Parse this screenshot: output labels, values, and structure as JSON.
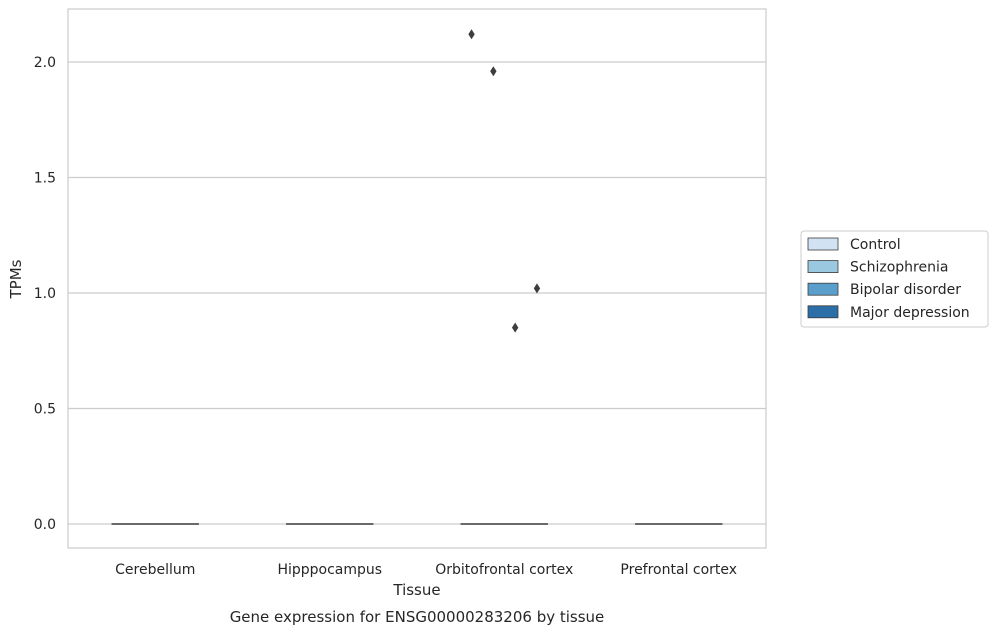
{
  "chart_data": {
    "type": "box",
    "title": "",
    "caption": "Gene expression for ENSG00000283206 by tissue",
    "xlabel": "Tissue",
    "ylabel": "TPMs",
    "ylim": [
      -0.1,
      2.23
    ],
    "yticks": [
      0.0,
      0.5,
      1.0,
      1.5,
      2.0
    ],
    "ytick_labels": [
      "0.0",
      "0.5",
      "1.0",
      "1.5",
      "2.0"
    ],
    "categories": [
      "Cerebellum",
      "Hipppocampus",
      "Orbitofrontal cortex",
      "Prefrontal cortex"
    ],
    "grid": "horizontal",
    "legend_position": "right",
    "series": [
      {
        "name": "Control",
        "color": "#d1e2f2",
        "boxes": [
          {
            "category": "Cerebellum",
            "median": 0.0,
            "q1": 0.0,
            "q3": 0.0,
            "whisker_low": 0.0,
            "whisker_high": 0.0,
            "outliers": []
          },
          {
            "category": "Hipppocampus",
            "median": 0.0,
            "q1": 0.0,
            "q3": 0.0,
            "whisker_low": 0.0,
            "whisker_high": 0.0,
            "outliers": []
          },
          {
            "category": "Orbitofrontal cortex",
            "median": 0.0,
            "q1": 0.0,
            "q3": 0.0,
            "whisker_low": 0.0,
            "whisker_high": 0.0,
            "outliers": [
              2.12
            ]
          },
          {
            "category": "Prefrontal cortex",
            "median": 0.0,
            "q1": 0.0,
            "q3": 0.0,
            "whisker_low": 0.0,
            "whisker_high": 0.0,
            "outliers": []
          }
        ]
      },
      {
        "name": "Schizophrenia",
        "color": "#9ac8e0",
        "boxes": [
          {
            "category": "Cerebellum",
            "median": 0.0,
            "q1": 0.0,
            "q3": 0.0,
            "whisker_low": 0.0,
            "whisker_high": 0.0,
            "outliers": []
          },
          {
            "category": "Hipppocampus",
            "median": 0.0,
            "q1": 0.0,
            "q3": 0.0,
            "whisker_low": 0.0,
            "whisker_high": 0.0,
            "outliers": []
          },
          {
            "category": "Orbitofrontal cortex",
            "median": 0.0,
            "q1": 0.0,
            "q3": 0.0,
            "whisker_low": 0.0,
            "whisker_high": 0.0,
            "outliers": [
              1.96
            ]
          },
          {
            "category": "Prefrontal cortex",
            "median": 0.0,
            "q1": 0.0,
            "q3": 0.0,
            "whisker_low": 0.0,
            "whisker_high": 0.0,
            "outliers": []
          }
        ]
      },
      {
        "name": "Bipolar disorder",
        "color": "#5a9fcb",
        "boxes": [
          {
            "category": "Cerebellum",
            "median": 0.0,
            "q1": 0.0,
            "q3": 0.0,
            "whisker_low": 0.0,
            "whisker_high": 0.0,
            "outliers": []
          },
          {
            "category": "Hipppocampus",
            "median": 0.0,
            "q1": 0.0,
            "q3": 0.0,
            "whisker_low": 0.0,
            "whisker_high": 0.0,
            "outliers": []
          },
          {
            "category": "Orbitofrontal cortex",
            "median": 0.0,
            "q1": 0.0,
            "q3": 0.0,
            "whisker_low": 0.0,
            "whisker_high": 0.0,
            "outliers": [
              0.85
            ]
          },
          {
            "category": "Prefrontal cortex",
            "median": 0.0,
            "q1": 0.0,
            "q3": 0.0,
            "whisker_low": 0.0,
            "whisker_high": 0.0,
            "outliers": []
          }
        ]
      },
      {
        "name": "Major depression",
        "color": "#2c6ea8",
        "boxes": [
          {
            "category": "Cerebellum",
            "median": 0.0,
            "q1": 0.0,
            "q3": 0.0,
            "whisker_low": 0.0,
            "whisker_high": 0.0,
            "outliers": []
          },
          {
            "category": "Hipppocampus",
            "median": 0.0,
            "q1": 0.0,
            "q3": 0.0,
            "whisker_low": 0.0,
            "whisker_high": 0.0,
            "outliers": []
          },
          {
            "category": "Orbitofrontal cortex",
            "median": 0.0,
            "q1": 0.0,
            "q3": 0.0,
            "whisker_low": 0.0,
            "whisker_high": 0.0,
            "outliers": [
              1.02
            ]
          },
          {
            "category": "Prefrontal cortex",
            "median": 0.0,
            "q1": 0.0,
            "q3": 0.0,
            "whisker_low": 0.0,
            "whisker_high": 0.0,
            "outliers": []
          }
        ]
      }
    ]
  },
  "colors": {
    "grid": "#cccccc",
    "frame": "#cccccc",
    "marks": "#3d3d3d",
    "text": "#262626"
  }
}
